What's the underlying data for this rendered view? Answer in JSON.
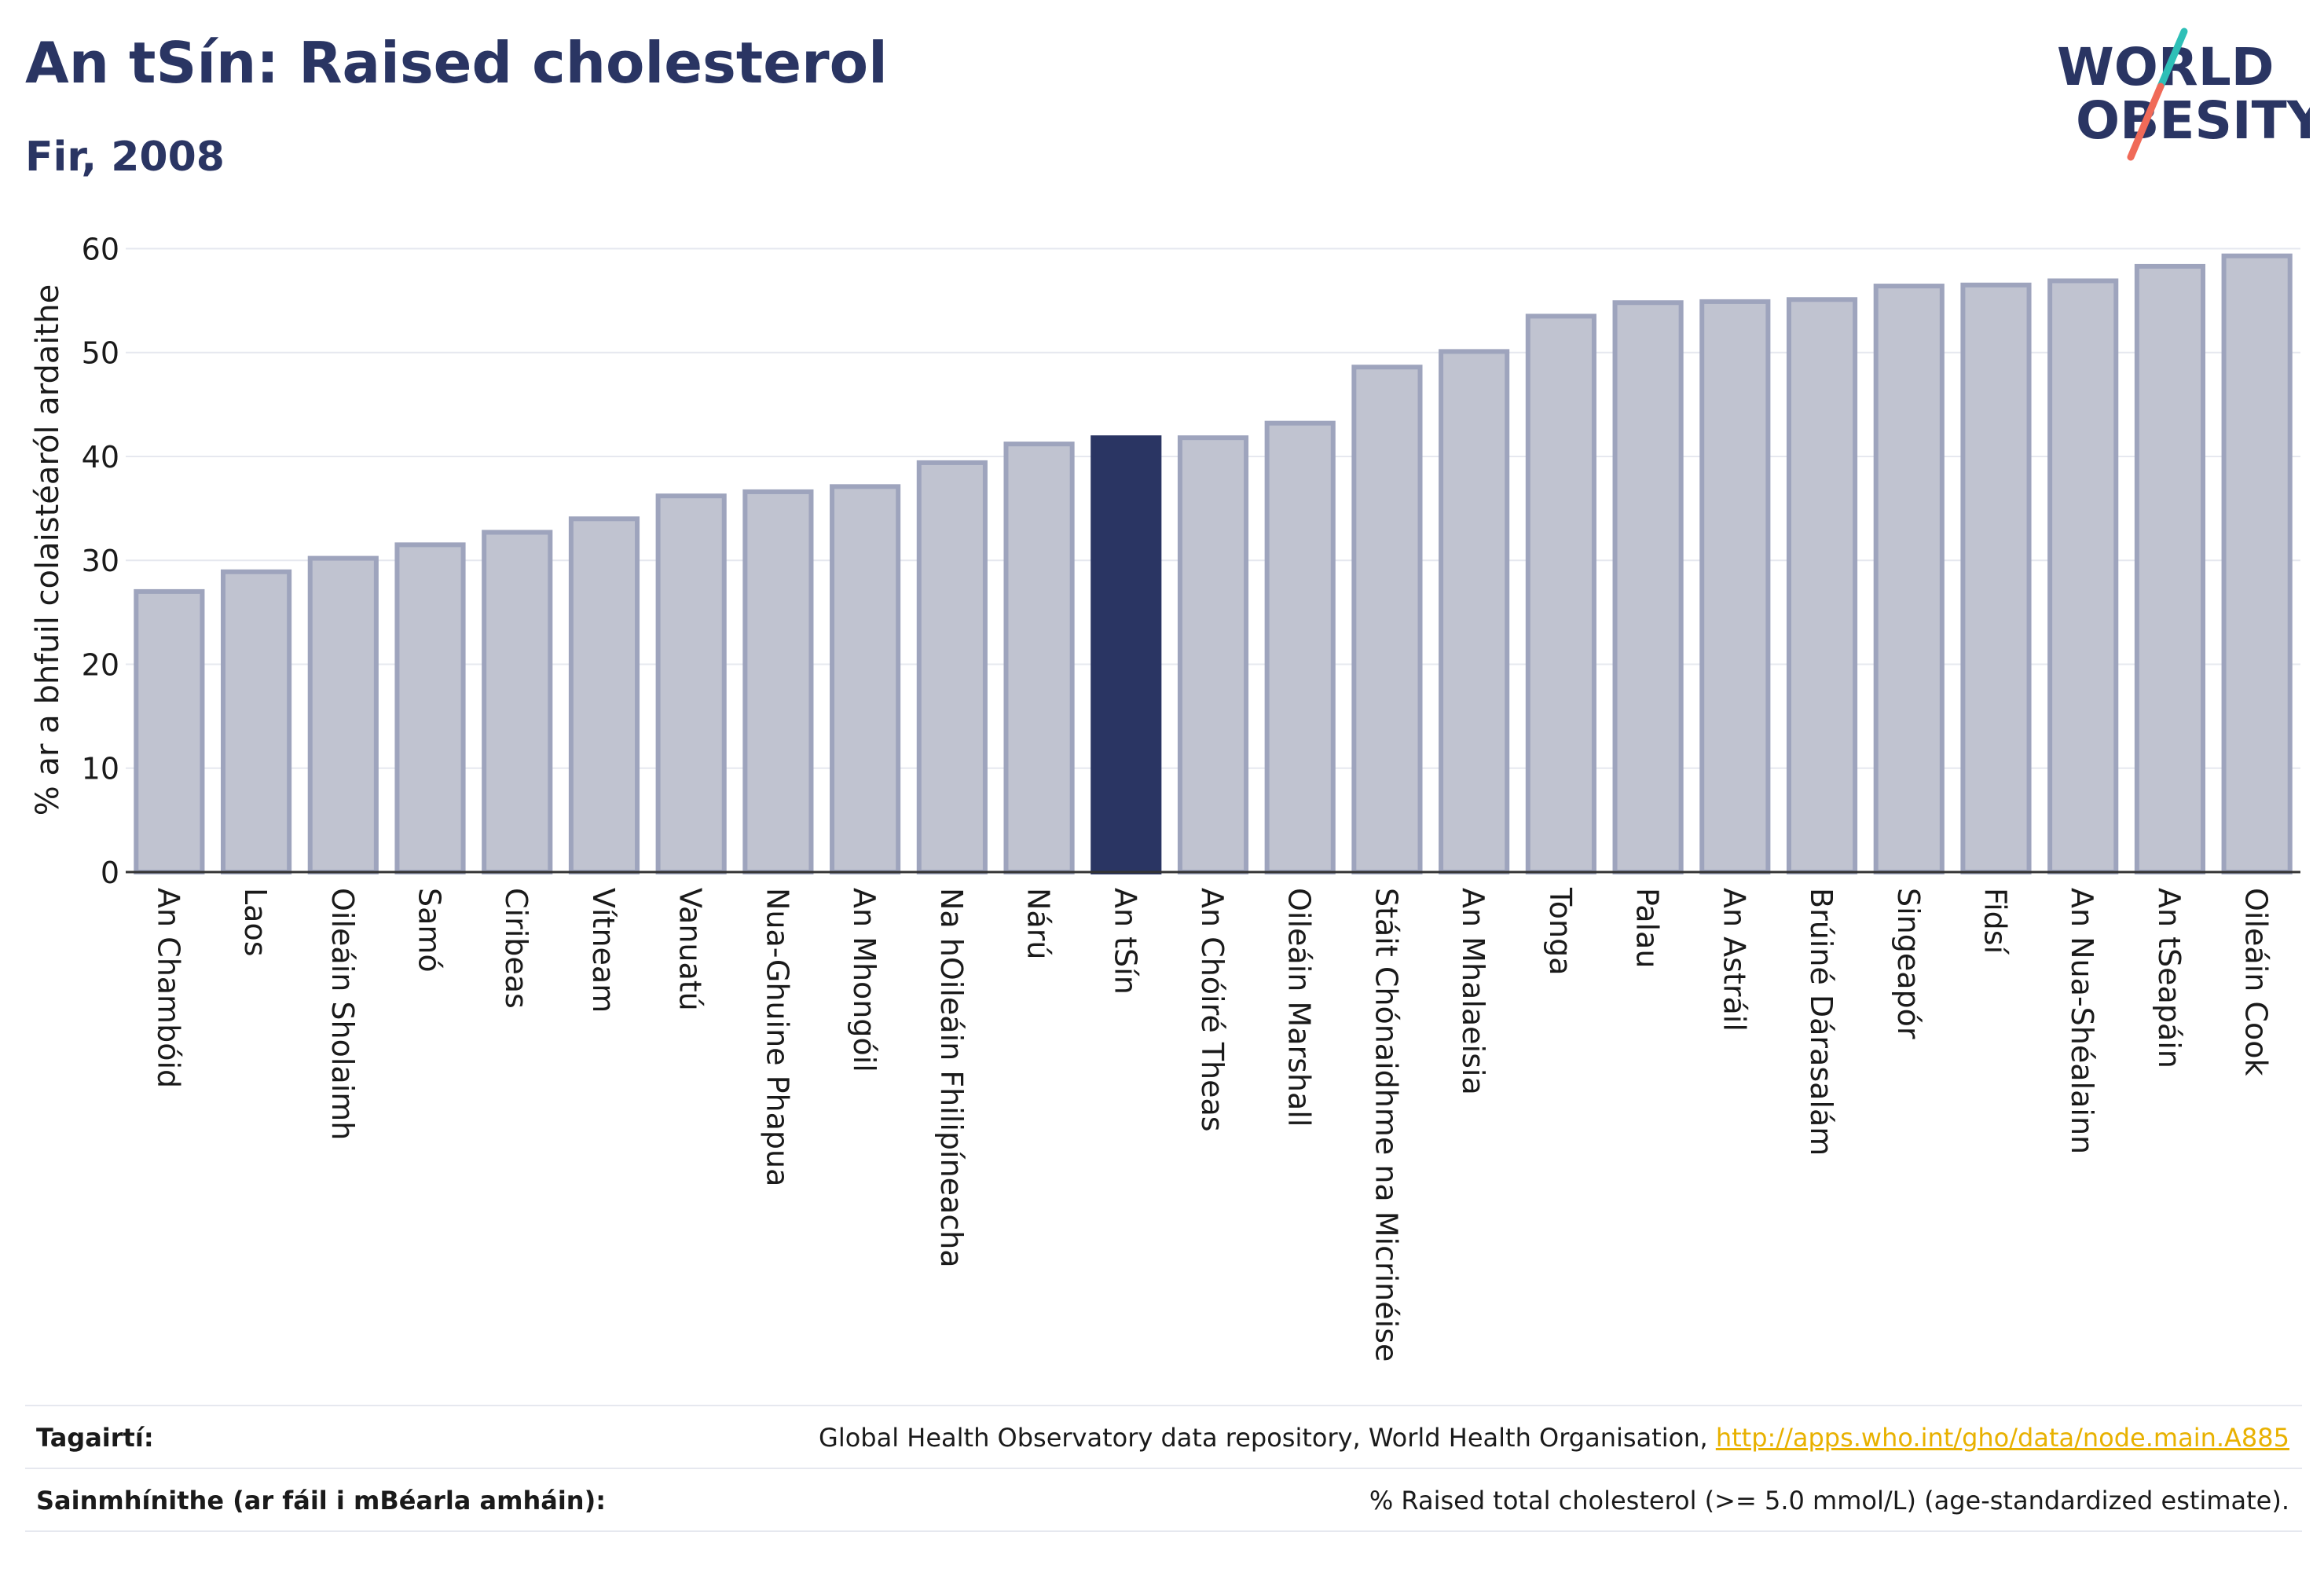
{
  "header": {
    "title": "An tSín: Raised cholesterol",
    "subtitle": "Fir, 2008"
  },
  "logo": {
    "line1": "WORLD",
    "line2": "OBESITY",
    "colors": {
      "text": "#2a3563",
      "slash_teal": "#2ebfb7",
      "slash_coral": "#f06a58"
    }
  },
  "chart_data": {
    "type": "bar",
    "ylabel": "% ar a bhfuil colaistéaról ardaithe",
    "xlabel": "",
    "ylim": [
      0,
      62
    ],
    "yticks": [
      0,
      10,
      20,
      30,
      40,
      50,
      60
    ],
    "grid": true,
    "highlight_category": "An tSín",
    "colors": {
      "bar": "#c0c3d0",
      "bar_border": "#9ea4bd",
      "highlight": "#2a3563"
    },
    "categories": [
      "An Chambóid",
      "Laos",
      "Oileáin Sholaimh",
      "Samó",
      "Ciribeas",
      "Vítneam",
      "Vanuatú",
      "Nua-Ghuine Phapua",
      "An Mhongóil",
      "Na hOileáin Fhilipíneacha",
      "Nárú",
      "An tSín",
      "An Chóiré Theas",
      "Oileáin Marshall",
      "Stáit Chónaidhme na Micrinéise",
      "An Mhalaeisia",
      "Tonga",
      "Palau",
      "An Astráil",
      "Brúiné Dárasalám",
      "Singeapór",
      "Fidsí",
      "An Nua-Shéalainn",
      "An tSeapáin",
      "Oileáin Cook"
    ],
    "values": [
      27.0,
      28.9,
      30.2,
      31.5,
      32.7,
      34.0,
      36.2,
      36.6,
      37.1,
      39.4,
      41.2,
      41.8,
      41.8,
      43.2,
      48.6,
      50.1,
      53.5,
      54.8,
      54.9,
      55.1,
      56.4,
      56.5,
      56.9,
      58.3,
      59.3
    ]
  },
  "footer": {
    "references_label": "Tagairtí:",
    "references_text": "Global Health Observatory data repository, World Health Organisation, ",
    "references_link": "http://apps.who.int/gho/data/node.main.A885",
    "definitions_label": "Sainmhínithe (ar fáil i mBéarla amháin):",
    "definitions_text": "% Raised total cholesterol (>= 5.0 mmol/L) (age-standardized estimate)."
  }
}
